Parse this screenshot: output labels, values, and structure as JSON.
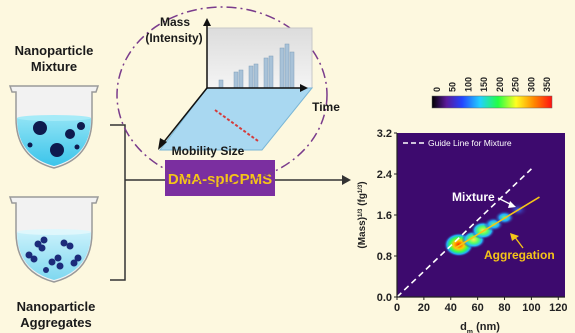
{
  "left": {
    "mixture_label_line1": "Nanoparticle",
    "mixture_label_line2": "Mixture",
    "aggregates_label_line1": "Nanoparticle",
    "aggregates_label_line2": "Aggregates"
  },
  "inset": {
    "mass_label": "Mass",
    "intensity_label": "(Intensity)",
    "time_label": "Time",
    "mobility_label": "Mobility Size"
  },
  "instrument": {
    "label": "DMA-spICPMS"
  },
  "colorbar": {
    "ticks": [
      "0",
      "50",
      "100",
      "150",
      "200",
      "250",
      "300",
      "350"
    ]
  },
  "colors": {
    "background": "#fdf8df",
    "instrument_box": "#7b2fa0",
    "instrument_text": "#f5c518",
    "ellipse": "#7a3c8c",
    "heatmap_bg": "#3d0a6e",
    "mixture_text": "#ffffff",
    "aggregation_text": "#f5c518"
  },
  "chart_data": {
    "type": "heatmap",
    "xlabel_main": "d",
    "xlabel_sub": "m",
    "xlabel_unit": " (nm)",
    "ylabel": "(Mass)",
    "ylabel_sup1": "1/3",
    "ylabel_unit": " (fg",
    "ylabel_sup2": "1/3",
    "ylabel_close": ")",
    "xlim": [
      0,
      125
    ],
    "ylim": [
      0,
      3.2
    ],
    "xticks": [
      "0",
      "20",
      "40",
      "60",
      "80",
      "100",
      "120"
    ],
    "yticks": [
      "0.0",
      "0.8",
      "1.6",
      "2.4",
      "3.2"
    ],
    "legend": "Guide Line for Mixture",
    "annotation_mixture": "Mixture",
    "annotation_aggregation": "Aggregation",
    "guide_line": [
      [
        0,
        0
      ],
      [
        100,
        2.5
      ]
    ],
    "aggregation_line": [
      [
        43,
        0.95
      ],
      [
        106,
        1.95
      ]
    ],
    "clusters": [
      {
        "x": 46,
        "y": 1.02,
        "level": 350
      },
      {
        "x": 57,
        "y": 1.12,
        "level": 250
      },
      {
        "x": 64,
        "y": 1.3,
        "level": 230
      },
      {
        "x": 72,
        "y": 1.42,
        "level": 180
      },
      {
        "x": 80,
        "y": 1.55,
        "level": 120
      },
      {
        "x": 90,
        "y": 1.7,
        "level": 80
      }
    ]
  }
}
